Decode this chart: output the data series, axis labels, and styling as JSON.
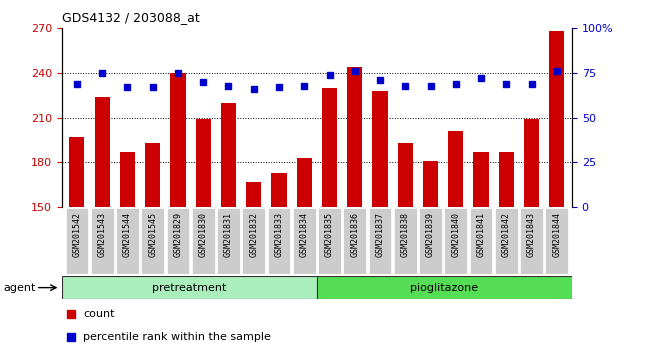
{
  "title": "GDS4132 / 203088_at",
  "categories": [
    "GSM201542",
    "GSM201543",
    "GSM201544",
    "GSM201545",
    "GSM201829",
    "GSM201830",
    "GSM201831",
    "GSM201832",
    "GSM201833",
    "GSM201834",
    "GSM201835",
    "GSM201836",
    "GSM201837",
    "GSM201838",
    "GSM201839",
    "GSM201840",
    "GSM201841",
    "GSM201842",
    "GSM201843",
    "GSM201844"
  ],
  "bar_values": [
    197,
    224,
    187,
    193,
    240,
    209,
    220,
    167,
    173,
    183,
    230,
    244,
    228,
    193,
    181,
    201,
    187,
    187,
    209,
    268
  ],
  "dot_values": [
    69,
    75,
    67,
    67,
    75,
    70,
    68,
    66,
    67,
    68,
    74,
    76,
    71,
    68,
    68,
    69,
    72,
    69,
    69,
    76
  ],
  "bar_color": "#cc0000",
  "dot_color": "#0000cc",
  "ylim_left": [
    150,
    270
  ],
  "ylim_right": [
    0,
    100
  ],
  "yticks_left": [
    150,
    180,
    210,
    240,
    270
  ],
  "yticks_right": [
    0,
    25,
    50,
    75,
    100
  ],
  "yticklabels_right": [
    "0",
    "25",
    "50",
    "75",
    "100%"
  ],
  "group1_label": "pretreatment",
  "group2_label": "pioglitazone",
  "group1_count": 10,
  "group2_count": 10,
  "agent_label": "agent",
  "legend_count": "count",
  "legend_percentile": "percentile rank within the sample",
  "bar_color_hex": "#cc0000",
  "bg_xticklabel": "#cccccc",
  "group1_color": "#aaeebb",
  "group2_color": "#55dd55",
  "group_band_color": "#88cc88"
}
